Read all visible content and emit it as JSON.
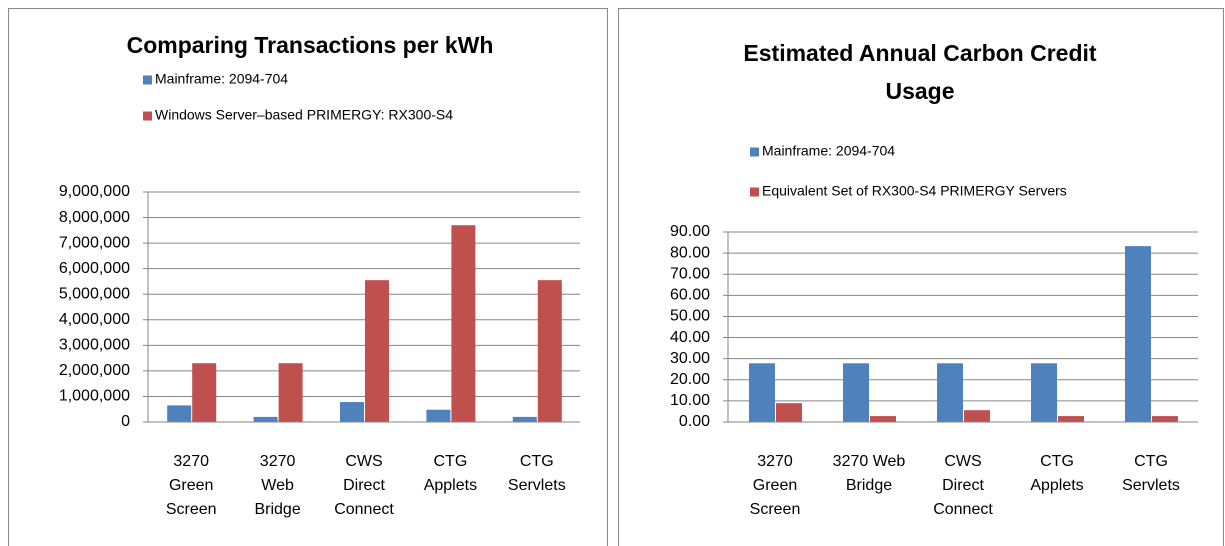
{
  "chart_data": [
    {
      "type": "bar",
      "title": [
        "Comparing Transactions per kWh"
      ],
      "categories": [
        [
          "3270",
          "Green",
          "Screen"
        ],
        [
          "3270",
          "Web",
          "Bridge"
        ],
        [
          "CWS",
          "Direct",
          "Connect"
        ],
        [
          "CTG",
          "Applets"
        ],
        [
          "CTG",
          "Servlets"
        ]
      ],
      "series": [
        {
          "name": "Mainframe: 2094-704",
          "color": "#4f81bd",
          "values": [
            650000,
            200000,
            780000,
            480000,
            200000
          ]
        },
        {
          "name": "Windows Server–based PRIMERGY: RX300-S4",
          "color": "#c0504d",
          "values": [
            2300000,
            2300000,
            5550000,
            7700000,
            5550000
          ]
        }
      ],
      "ylim": [
        0,
        9000000
      ],
      "yticks": [
        0,
        {
          "value": 1000000,
          "label": "1,000,000"
        },
        {
          "value": 2000000,
          "label": "2,000,000"
        },
        {
          "value": 3000000,
          "label": "3,000,000"
        },
        {
          "value": 4000000,
          "label": "4,000,000"
        },
        {
          "value": 5000000,
          "label": "5,000,000"
        },
        {
          "value": 6000000,
          "label": "6,000,000"
        },
        {
          "value": 7000000,
          "label": "7,000,000"
        },
        {
          "value": 8000000,
          "label": "8,000,000"
        },
        {
          "value": 9000000,
          "label": "9,000,000"
        }
      ],
      "grid": true,
      "legend": "top"
    },
    {
      "type": "bar",
      "title": [
        "Estimated Annual Carbon Credit",
        "Usage"
      ],
      "categories": [
        [
          "3270",
          "Green",
          "Screen"
        ],
        [
          "3270 Web",
          "Bridge"
        ],
        [
          "CWS",
          "Direct",
          "Connect"
        ],
        [
          "CTG",
          "Applets"
        ],
        [
          "CTG",
          "Servlets"
        ]
      ],
      "series": [
        {
          "name": "Mainframe: 2094-704",
          "color": "#4f81bd",
          "values": [
            27.8,
            27.8,
            27.8,
            27.8,
            83.3
          ]
        },
        {
          "name": "Equivalent Set of RX300-S4 PRIMERGY Servers",
          "color": "#c0504d",
          "values": [
            8.9,
            2.8,
            5.6,
            2.8,
            2.8
          ]
        }
      ],
      "ylim": [
        0,
        90
      ],
      "yticks": [
        {
          "value": 0,
          "label": "0.00"
        },
        {
          "value": 10,
          "label": "10.00"
        },
        {
          "value": 20,
          "label": "20.00"
        },
        {
          "value": 30,
          "label": "30.00"
        },
        {
          "value": 40,
          "label": "40.00"
        },
        {
          "value": 50,
          "label": "50.00"
        },
        {
          "value": 60,
          "label": "60.00"
        },
        {
          "value": 70,
          "label": "70.00"
        },
        {
          "value": 80,
          "label": "80.00"
        },
        {
          "value": 90,
          "label": "90.00"
        }
      ],
      "grid": true,
      "legend": "top"
    }
  ]
}
